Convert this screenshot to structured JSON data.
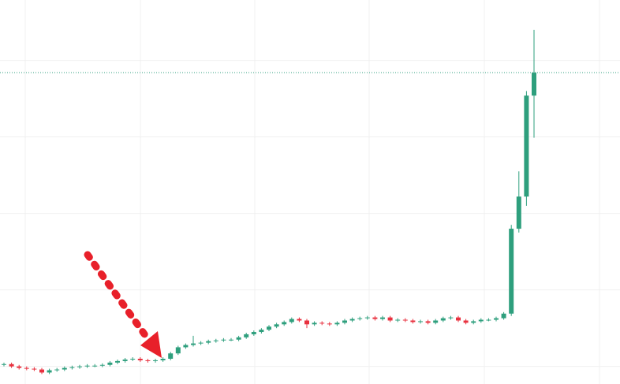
{
  "chart_data": {
    "type": "candlestick",
    "open": [
      1.02,
      1.03,
      1.0,
      0.98,
      0.97,
      0.96,
      0.92,
      0.95,
      0.96,
      0.98,
      0.99,
      1.0,
      1.01,
      1.01,
      1.02,
      1.05,
      1.07,
      1.09,
      1.1,
      1.08,
      1.07,
      1.08,
      1.1,
      1.17,
      1.25,
      1.28,
      1.3,
      1.31,
      1.33,
      1.34,
      1.35,
      1.35,
      1.38,
      1.42,
      1.45,
      1.48,
      1.52,
      1.55,
      1.58,
      1.62,
      1.6,
      1.55,
      1.57,
      1.56,
      1.55,
      1.57,
      1.6,
      1.62,
      1.63,
      1.64,
      1.62,
      1.64,
      1.6,
      1.61,
      1.6,
      1.58,
      1.59,
      1.57,
      1.6,
      1.63,
      1.64,
      1.6,
      1.57,
      1.59,
      1.61,
      1.61,
      1.63,
      1.69,
      2.8,
      3.22,
      4.54
    ],
    "high": [
      1.05,
      1.05,
      1.02,
      1.0,
      0.99,
      0.98,
      0.97,
      0.98,
      1.0,
      1.01,
      1.02,
      1.03,
      1.03,
      1.04,
      1.07,
      1.09,
      1.11,
      1.12,
      1.12,
      1.1,
      1.1,
      1.12,
      1.19,
      1.27,
      1.3,
      1.4,
      1.33,
      1.35,
      1.36,
      1.37,
      1.37,
      1.4,
      1.44,
      1.47,
      1.5,
      1.54,
      1.57,
      1.6,
      1.64,
      1.64,
      1.62,
      1.59,
      1.59,
      1.58,
      1.59,
      1.62,
      1.64,
      1.65,
      1.66,
      1.66,
      1.66,
      1.66,
      1.63,
      1.63,
      1.62,
      1.61,
      1.61,
      1.62,
      1.65,
      1.66,
      1.66,
      1.62,
      1.61,
      1.63,
      1.63,
      1.65,
      1.71,
      2.85,
      3.55,
      4.6,
      5.4
    ],
    "low": [
      1.0,
      0.98,
      0.96,
      0.95,
      0.94,
      0.9,
      0.9,
      0.93,
      0.94,
      0.96,
      0.97,
      0.98,
      0.99,
      0.99,
      1.0,
      1.03,
      1.05,
      1.07,
      1.06,
      1.05,
      1.05,
      1.06,
      1.08,
      1.15,
      1.23,
      1.26,
      1.28,
      1.29,
      1.31,
      1.32,
      1.33,
      1.33,
      1.36,
      1.4,
      1.43,
      1.46,
      1.5,
      1.53,
      1.56,
      1.58,
      1.5,
      1.53,
      1.54,
      1.53,
      1.53,
      1.55,
      1.58,
      1.6,
      1.61,
      1.6,
      1.6,
      1.58,
      1.58,
      1.58,
      1.56,
      1.56,
      1.55,
      1.55,
      1.58,
      1.61,
      1.58,
      1.55,
      1.55,
      1.57,
      1.59,
      1.59,
      1.61,
      1.66,
      2.75,
      3.1,
      3.99
    ],
    "close": [
      1.03,
      1.0,
      0.98,
      0.97,
      0.96,
      0.92,
      0.95,
      0.96,
      0.98,
      0.99,
      1.0,
      1.01,
      1.01,
      1.02,
      1.05,
      1.07,
      1.09,
      1.1,
      1.08,
      1.07,
      1.08,
      1.1,
      1.17,
      1.25,
      1.28,
      1.3,
      1.31,
      1.33,
      1.34,
      1.35,
      1.35,
      1.38,
      1.42,
      1.45,
      1.48,
      1.52,
      1.55,
      1.58,
      1.62,
      1.6,
      1.55,
      1.57,
      1.56,
      1.55,
      1.57,
      1.6,
      1.62,
      1.63,
      1.64,
      1.62,
      1.64,
      1.6,
      1.61,
      1.6,
      1.58,
      1.59,
      1.57,
      1.6,
      1.63,
      1.64,
      1.6,
      1.57,
      1.59,
      1.61,
      1.61,
      1.63,
      1.69,
      2.8,
      3.22,
      4.54,
      4.84
    ],
    "up_color": "#2e9f7d",
    "down_color": "#e8313f",
    "last_price_color": "#2e9f7d",
    "ylim": [
      0.77,
      5.79
    ],
    "yticks": [
      1,
      2,
      3,
      4,
      5
    ],
    "grid": true
  }
}
